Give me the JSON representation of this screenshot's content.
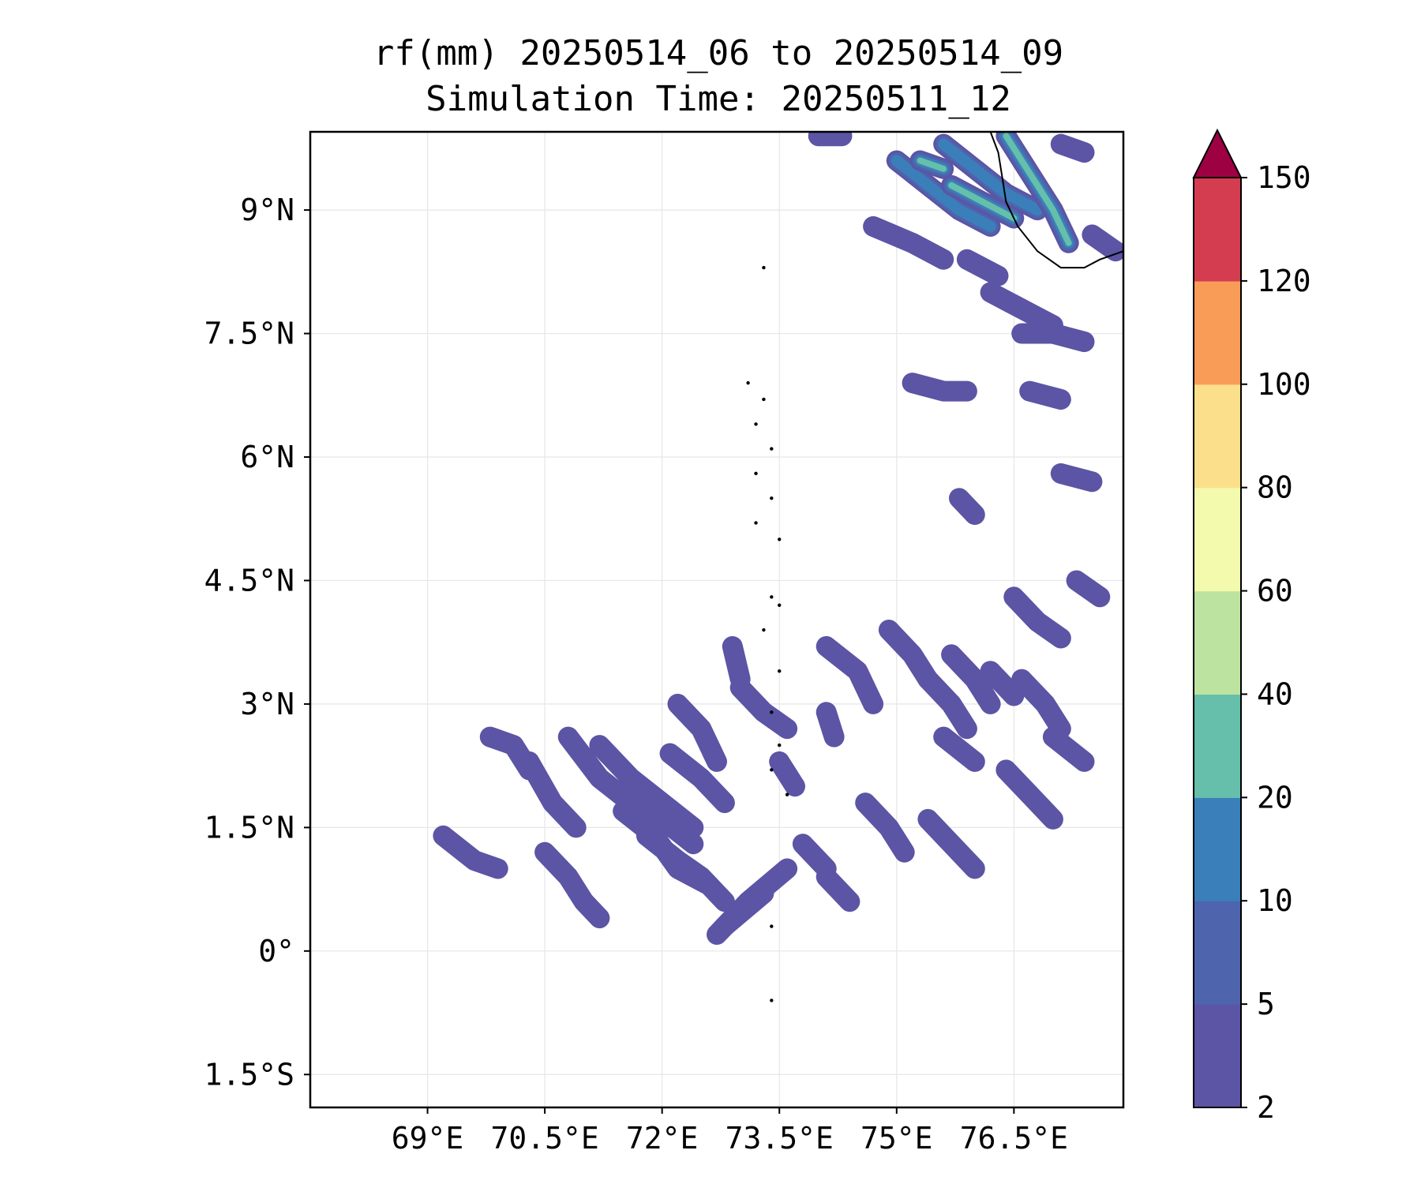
{
  "title": {
    "line1": "rf(mm) 20250514_06 to 20250514_09",
    "line2": "Simulation Time: 20250511_12"
  },
  "map": {
    "lon_range": [
      67.5,
      77.9
    ],
    "lat_range": [
      -1.9,
      9.95
    ],
    "x_ticks": [
      {
        "value": 69.0,
        "label": "69°E"
      },
      {
        "value": 70.5,
        "label": "70.5°E"
      },
      {
        "value": 72.0,
        "label": "72°E"
      },
      {
        "value": 73.5,
        "label": "73.5°E"
      },
      {
        "value": 75.0,
        "label": "75°E"
      },
      {
        "value": 76.5,
        "label": "76.5°E"
      }
    ],
    "y_ticks": [
      {
        "value": 9.0,
        "label": "9°N"
      },
      {
        "value": 7.5,
        "label": "7.5°N"
      },
      {
        "value": 6.0,
        "label": "6°N"
      },
      {
        "value": 4.5,
        "label": "4.5°N"
      },
      {
        "value": 3.0,
        "label": "3°N"
      },
      {
        "value": 1.5,
        "label": "1.5°N"
      },
      {
        "value": 0.0,
        "label": "0°"
      },
      {
        "value": -1.5,
        "label": "1.5°S"
      }
    ],
    "grid": true
  },
  "colorbar": {
    "levels": [
      2,
      5,
      10,
      20,
      40,
      60,
      80,
      100,
      120,
      150
    ],
    "labels": [
      "2",
      "5",
      "10",
      "20",
      "40",
      "60",
      "80",
      "100",
      "120",
      "150"
    ],
    "colors": [
      "#5c54a4",
      "#4e64ad",
      "#3a7fba",
      "#65bfab",
      "#bde3a0",
      "#f3f9ad",
      "#fcdf8a",
      "#f99c58",
      "#d43d4f"
    ],
    "extend_color": "#9e0142"
  },
  "rain_bands": [
    {
      "points": [
        [
          69.2,
          1.4
        ],
        [
          69.6,
          1.1
        ],
        [
          69.9,
          1.0
        ]
      ],
      "level": 0
    },
    {
      "points": [
        [
          69.8,
          2.6
        ],
        [
          70.1,
          2.5
        ],
        [
          70.3,
          2.2
        ]
      ],
      "level": 0
    },
    {
      "points": [
        [
          70.3,
          2.3
        ],
        [
          70.6,
          1.8
        ],
        [
          70.9,
          1.5
        ]
      ],
      "level": 0
    },
    {
      "points": [
        [
          70.5,
          1.2
        ],
        [
          70.8,
          0.9
        ],
        [
          71.0,
          0.6
        ],
        [
          71.2,
          0.4
        ]
      ],
      "level": 0
    },
    {
      "points": [
        [
          70.8,
          2.6
        ],
        [
          71.2,
          2.1
        ],
        [
          71.6,
          1.8
        ],
        [
          72.0,
          1.6
        ],
        [
          72.4,
          1.3
        ]
      ],
      "level": 0
    },
    {
      "points": [
        [
          71.2,
          2.5
        ],
        [
          71.6,
          2.1
        ],
        [
          72.0,
          1.8
        ],
        [
          72.4,
          1.5
        ]
      ],
      "level": 0
    },
    {
      "points": [
        [
          71.5,
          1.7
        ],
        [
          71.9,
          1.4
        ],
        [
          72.2,
          1.0
        ],
        [
          72.6,
          0.8
        ]
      ],
      "level": 0
    },
    {
      "points": [
        [
          71.8,
          1.4
        ],
        [
          72.2,
          1.1
        ],
        [
          72.5,
          0.9
        ],
        [
          72.8,
          0.6
        ]
      ],
      "level": 0
    },
    {
      "points": [
        [
          72.2,
          3.0
        ],
        [
          72.5,
          2.7
        ],
        [
          72.7,
          2.3
        ]
      ],
      "level": 0
    },
    {
      "points": [
        [
          72.1,
          2.4
        ],
        [
          72.5,
          2.1
        ],
        [
          72.8,
          1.8
        ]
      ],
      "level": 0
    },
    {
      "points": [
        [
          73.0,
          3.2
        ],
        [
          73.3,
          2.9
        ],
        [
          73.6,
          2.7
        ]
      ],
      "level": 0
    },
    {
      "points": [
        [
          72.9,
          3.7
        ],
        [
          73.0,
          3.3
        ]
      ],
      "level": 0
    },
    {
      "points": [
        [
          73.5,
          2.3
        ],
        [
          73.7,
          2.0
        ]
      ],
      "level": 0
    },
    {
      "points": [
        [
          73.3,
          0.7
        ],
        [
          72.8,
          0.3
        ]
      ],
      "level": 0
    },
    {
      "points": [
        [
          73.6,
          1.0
        ],
        [
          73.1,
          0.6
        ],
        [
          72.7,
          0.2
        ]
      ],
      "level": 0
    },
    {
      "points": [
        [
          73.8,
          1.3
        ],
        [
          74.1,
          1.0
        ]
      ],
      "level": 0
    },
    {
      "points": [
        [
          74.1,
          0.9
        ],
        [
          74.4,
          0.6
        ]
      ],
      "level": 0
    },
    {
      "points": [
        [
          74.1,
          2.9
        ],
        [
          74.2,
          2.6
        ]
      ],
      "level": 0
    },
    {
      "points": [
        [
          74.6,
          1.8
        ],
        [
          74.9,
          1.5
        ],
        [
          75.1,
          1.2
        ]
      ],
      "level": 0
    },
    {
      "points": [
        [
          75.4,
          1.6
        ],
        [
          75.7,
          1.3
        ],
        [
          76.0,
          1.0
        ]
      ],
      "level": 0
    },
    {
      "points": [
        [
          75.6,
          2.6
        ],
        [
          76.0,
          2.3
        ]
      ],
      "level": 0
    },
    {
      "points": [
        [
          76.4,
          2.2
        ],
        [
          76.7,
          1.9
        ],
        [
          77.0,
          1.6
        ]
      ],
      "level": 0
    },
    {
      "points": [
        [
          76.6,
          3.3
        ],
        [
          76.9,
          3.0
        ],
        [
          77.1,
          2.7
        ]
      ],
      "level": 0
    },
    {
      "points": [
        [
          77.0,
          2.6
        ],
        [
          77.4,
          2.3
        ]
      ],
      "level": 0
    },
    {
      "points": [
        [
          74.1,
          3.7
        ],
        [
          74.5,
          3.4
        ],
        [
          74.7,
          3.0
        ]
      ],
      "level": 0
    },
    {
      "points": [
        [
          74.9,
          3.9
        ],
        [
          75.2,
          3.6
        ],
        [
          75.4,
          3.3
        ]
      ],
      "level": 0
    },
    {
      "points": [
        [
          75.4,
          3.3
        ],
        [
          75.7,
          3.0
        ],
        [
          75.9,
          2.7
        ]
      ],
      "level": 0
    },
    {
      "points": [
        [
          75.7,
          3.6
        ],
        [
          76.0,
          3.3
        ],
        [
          76.2,
          3.0
        ]
      ],
      "level": 0
    },
    {
      "points": [
        [
          76.2,
          3.4
        ],
        [
          76.5,
          3.1
        ]
      ],
      "level": 0
    },
    {
      "points": [
        [
          76.5,
          4.3
        ],
        [
          76.8,
          4.0
        ],
        [
          77.1,
          3.8
        ]
      ],
      "level": 0
    },
    {
      "points": [
        [
          77.3,
          4.5
        ],
        [
          77.6,
          4.3
        ]
      ],
      "level": 0
    },
    {
      "points": [
        [
          75.8,
          5.5
        ],
        [
          76.0,
          5.3
        ]
      ],
      "level": 0
    },
    {
      "points": [
        [
          77.1,
          5.8
        ],
        [
          77.5,
          5.7
        ]
      ],
      "level": 0
    },
    {
      "points": [
        [
          76.7,
          6.8
        ],
        [
          77.1,
          6.7
        ]
      ],
      "level": 0
    },
    {
      "points": [
        [
          75.2,
          6.9
        ],
        [
          75.6,
          6.8
        ],
        [
          75.9,
          6.8
        ]
      ],
      "level": 0
    },
    {
      "points": [
        [
          76.6,
          7.5
        ],
        [
          77.0,
          7.5
        ],
        [
          77.4,
          7.4
        ]
      ],
      "level": 0
    },
    {
      "points": [
        [
          76.2,
          8.0
        ],
        [
          76.6,
          7.8
        ],
        [
          77.0,
          7.6
        ]
      ],
      "level": 0
    },
    {
      "points": [
        [
          75.9,
          8.4
        ],
        [
          76.3,
          8.2
        ]
      ],
      "level": 0
    },
    {
      "points": [
        [
          74.7,
          8.8
        ],
        [
          75.2,
          8.6
        ],
        [
          75.6,
          8.4
        ]
      ],
      "level": 0
    },
    {
      "points": [
        [
          74.0,
          9.9
        ],
        [
          74.3,
          9.9
        ]
      ],
      "level": 0
    },
    {
      "points": [
        [
          77.1,
          9.8
        ],
        [
          77.4,
          9.7
        ]
      ],
      "level": 0
    },
    {
      "points": [
        [
          77.5,
          8.7
        ],
        [
          77.8,
          8.5
        ]
      ],
      "level": 0
    },
    {
      "points": [
        [
          75.0,
          9.6
        ],
        [
          75.4,
          9.3
        ],
        [
          75.8,
          9.0
        ],
        [
          76.2,
          8.8
        ]
      ],
      "level": 2
    },
    {
      "points": [
        [
          75.6,
          9.8
        ],
        [
          76.0,
          9.5
        ],
        [
          76.4,
          9.2
        ],
        [
          76.8,
          9.0
        ]
      ],
      "level": 2
    },
    {
      "points": [
        [
          76.4,
          9.9
        ],
        [
          76.6,
          9.6
        ],
        [
          76.8,
          9.3
        ],
        [
          77.0,
          9.0
        ],
        [
          77.2,
          8.6
        ]
      ],
      "level": 3
    },
    {
      "points": [
        [
          75.7,
          9.3
        ],
        [
          76.1,
          9.1
        ],
        [
          76.5,
          8.9
        ]
      ],
      "level": 3
    },
    {
      "points": [
        [
          75.3,
          9.6
        ],
        [
          75.6,
          9.5
        ]
      ],
      "level": 3
    }
  ],
  "coastline": [
    [
      76.2,
      9.95
    ],
    [
      76.3,
      9.7
    ],
    [
      76.35,
      9.4
    ],
    [
      76.4,
      9.1
    ],
    [
      76.55,
      8.8
    ],
    [
      76.8,
      8.5
    ],
    [
      77.1,
      8.3
    ],
    [
      77.4,
      8.3
    ],
    [
      77.6,
      8.4
    ],
    [
      77.9,
      8.5
    ]
  ],
  "islands": [
    [
      73.3,
      8.3
    ],
    [
      73.1,
      6.9
    ],
    [
      73.3,
      6.7
    ],
    [
      73.2,
      6.4
    ],
    [
      73.4,
      6.1
    ],
    [
      73.2,
      5.8
    ],
    [
      73.4,
      5.5
    ],
    [
      73.2,
      5.2
    ],
    [
      73.5,
      5.0
    ],
    [
      73.4,
      4.3
    ],
    [
      73.5,
      4.2
    ],
    [
      73.3,
      3.9
    ],
    [
      73.5,
      3.4
    ],
    [
      73.4,
      2.9
    ],
    [
      73.5,
      2.5
    ],
    [
      73.4,
      2.2
    ],
    [
      73.6,
      1.9
    ],
    [
      73.4,
      0.3
    ],
    [
      73.4,
      -0.6
    ]
  ]
}
